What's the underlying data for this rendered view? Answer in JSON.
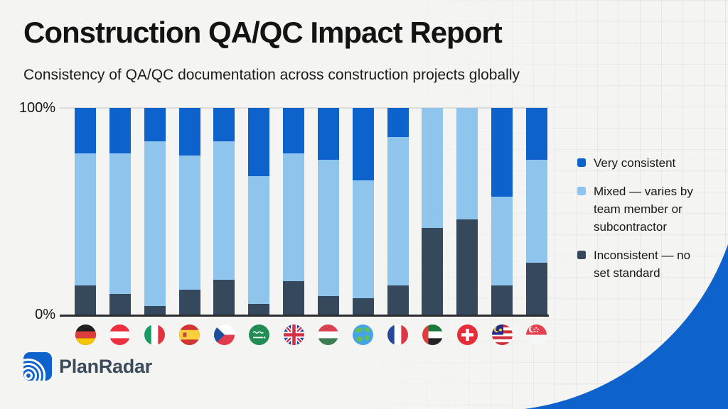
{
  "page": {
    "title": "Construction QA/QC Impact Report",
    "subtitle": "Consistency of QA/QC documentation across construction projects globally"
  },
  "brand": {
    "logo_text": "PlanRadar"
  },
  "colors": {
    "brand_blue": "#0d63cb",
    "corner_curve": "#0d63cb",
    "light_blue": "#8fc4ec",
    "dark_navy": "#36485c"
  },
  "chart_data": {
    "type": "bar",
    "stacked": true,
    "title": "Consistency of QA/QC documentation across construction projects globally",
    "ylim": [
      0,
      100
    ],
    "grid": false,
    "legend_position": "right",
    "y_axis": {
      "max_label": "100%",
      "min_label": "0%",
      "ticks": [
        "100%",
        "0%"
      ]
    },
    "categories": [
      "Germany",
      "Austria",
      "Italy",
      "Spain",
      "Czech Republic",
      "Saudi Arabia",
      "United Kingdom",
      "Hungary",
      "Global",
      "France",
      "United Arab Emirates",
      "Switzerland",
      "Malaysia",
      "Singapore"
    ],
    "flags": [
      "de",
      "at",
      "it",
      "es",
      "cz",
      "sa",
      "gb",
      "hu",
      "globe",
      "fr",
      "ae",
      "ch",
      "my",
      "sg"
    ],
    "series": [
      {
        "name": "Very consistent",
        "color": "#0d63cb",
        "values": [
          22,
          22,
          16,
          23,
          16,
          33,
          22,
          25,
          35,
          14,
          0,
          0,
          43,
          25
        ]
      },
      {
        "name": "Mixed — varies by team member or subcontractor",
        "color": "#8fc4ec",
        "values": [
          64,
          68,
          80,
          65,
          67,
          62,
          62,
          66,
          57,
          72,
          58,
          54,
          43,
          50
        ]
      },
      {
        "name": "Inconsistent — no set standard",
        "color": "#36485c",
        "values": [
          14,
          10,
          4,
          12,
          17,
          5,
          16,
          9,
          8,
          14,
          42,
          46,
          14,
          25
        ]
      }
    ]
  }
}
